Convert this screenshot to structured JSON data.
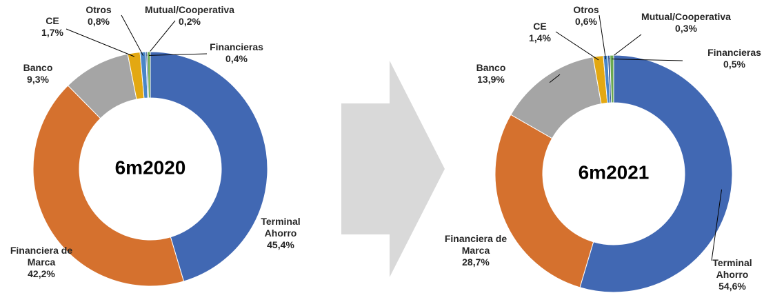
{
  "chart_data": [
    {
      "type": "donut",
      "title": "6m2020",
      "categories": [
        "Terminal Ahorro",
        "Financiera de Marca",
        "Banco",
        "CE",
        "Otros",
        "Mutual/Cooperativa",
        "Financieras"
      ],
      "values": [
        45.4,
        42.2,
        9.3,
        1.7,
        0.8,
        0.2,
        0.4
      ],
      "value_labels": [
        "45,4%",
        "42,2%",
        "9,3%",
        "1,7%",
        "0,8%",
        "0,2%",
        "0,4%"
      ],
      "colors": [
        "#4168b3",
        "#d5712e",
        "#a5a5a5",
        "#e3a812",
        "#4a86c8",
        "#2f5597",
        "#6aa84f"
      ]
    },
    {
      "type": "donut",
      "title": "6m2021",
      "categories": [
        "Terminal Ahorro",
        "Financiera de Marca",
        "Banco",
        "CE",
        "Otros",
        "Mutual/Cooperativa",
        "Financieras"
      ],
      "values": [
        54.6,
        28.7,
        13.9,
        1.4,
        0.6,
        0.3,
        0.5
      ],
      "value_labels": [
        "54,6%",
        "28,7%",
        "13,9%",
        "1,4%",
        "0,6%",
        "0,3%",
        "0,5%"
      ],
      "colors": [
        "#4168b3",
        "#d5712e",
        "#a5a5a5",
        "#e3a812",
        "#4a86c8",
        "#2f5597",
        "#6aa84f"
      ]
    }
  ]
}
